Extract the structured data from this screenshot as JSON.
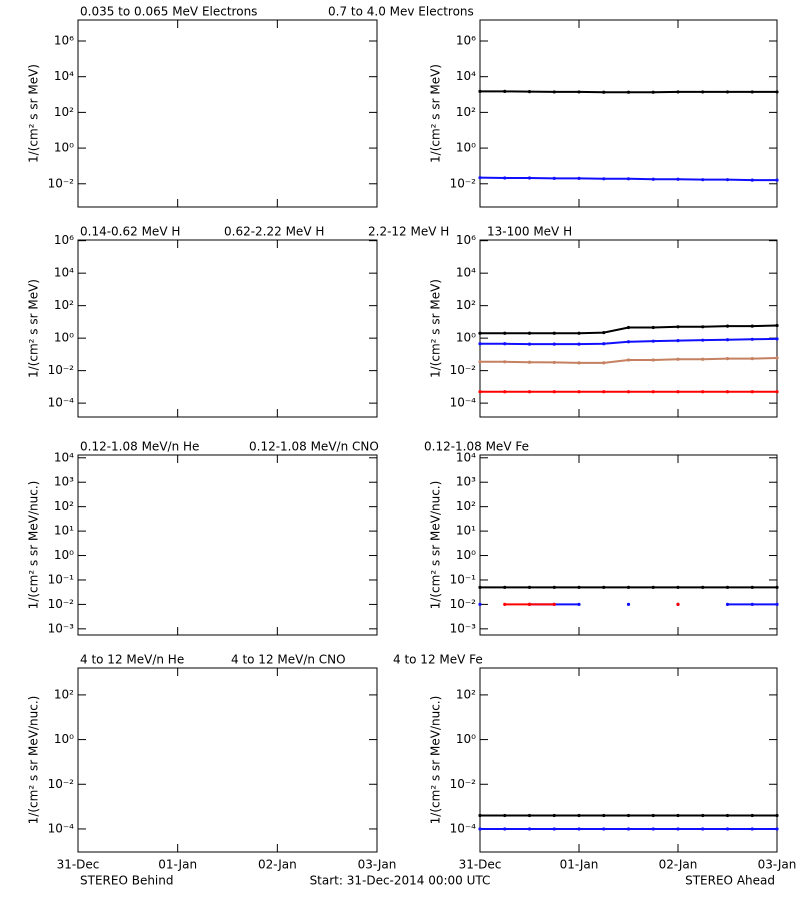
{
  "x_axis": {
    "xlim": [
      0,
      3
    ],
    "xticks": [
      {
        "value": 0,
        "label": "31-Dec"
      },
      {
        "value": 1,
        "label": "01-Jan"
      },
      {
        "value": 2,
        "label": "02-Jan"
      },
      {
        "value": 3,
        "label": "03-Jan"
      }
    ]
  },
  "footer": {
    "left": "STEREO Behind",
    "center": "Start: 31-Dec-2014 00:00 UTC",
    "right": "STEREO Ahead"
  },
  "chart_data": [
    {
      "type": "line",
      "ylabel": "1/(cm² s sr MeV)",
      "ylog": true,
      "ylim": [
        0.0005,
        15000000
      ],
      "yticks": [
        {
          "value": 1000000,
          "label": "10⁶"
        },
        {
          "value": 10000,
          "label": "10⁴"
        },
        {
          "value": 100,
          "label": "10²"
        },
        {
          "value": 1,
          "label": "10⁰"
        },
        {
          "value": 0.01,
          "label": "10⁻²"
        }
      ]
    },
    {
      "type": "line",
      "ylabel": "1/(cm² s sr MeV)",
      "ylog": true,
      "ylim": [
        0.0005,
        15000000
      ],
      "yticks": [
        {
          "value": 1000000,
          "label": "10⁶"
        },
        {
          "value": 10000,
          "label": "10⁴"
        },
        {
          "value": 100,
          "label": "10²"
        },
        {
          "value": 1,
          "label": "10⁰"
        },
        {
          "value": 0.01,
          "label": "10⁻²"
        }
      ],
      "x": [
        0,
        0.25,
        0.5,
        0.75,
        1,
        1.25,
        1.5,
        1.75,
        2,
        2.25,
        2.5,
        2.75,
        3
      ],
      "series": [
        {
          "name": "0.035 to 0.065 MeV Electrons",
          "color": "#000000",
          "values": [
            1500,
            1500,
            1450,
            1400,
            1400,
            1350,
            1350,
            1350,
            1400,
            1400,
            1400,
            1400,
            1400
          ]
        },
        {
          "name": "0.7 to 4.0 Mev Electrons",
          "color": "#1010ff",
          "values": [
            0.022,
            0.021,
            0.021,
            0.02,
            0.02,
            0.019,
            0.019,
            0.018,
            0.018,
            0.017,
            0.017,
            0.016,
            0.016
          ]
        }
      ]
    },
    {
      "type": "line",
      "ylabel": "1/(cm² s sr MeV)",
      "ylog": true,
      "ylim": [
        1.4e-05,
        1100000
      ],
      "yticks": [
        {
          "value": 1000000,
          "label": "10⁶"
        },
        {
          "value": 10000,
          "label": "10⁴"
        },
        {
          "value": 100,
          "label": "10²"
        },
        {
          "value": 1,
          "label": "10⁰"
        },
        {
          "value": 0.01,
          "label": "10⁻²"
        },
        {
          "value": 0.0001,
          "label": "10⁻⁴"
        }
      ]
    },
    {
      "type": "line",
      "ylabel": "1/(cm² s sr MeV)",
      "ylog": true,
      "ylim": [
        1.4e-05,
        1100000
      ],
      "yticks": [
        {
          "value": 1000000,
          "label": "10⁶"
        },
        {
          "value": 10000,
          "label": "10⁴"
        },
        {
          "value": 100,
          "label": "10²"
        },
        {
          "value": 1,
          "label": "10⁰"
        },
        {
          "value": 0.01,
          "label": "10⁻²"
        },
        {
          "value": 0.0001,
          "label": "10⁻⁴"
        }
      ],
      "x": [
        0,
        0.25,
        0.5,
        0.75,
        1,
        1.25,
        1.5,
        1.75,
        2,
        2.25,
        2.5,
        2.75,
        3
      ],
      "series": [
        {
          "name": "0.14-0.62 MeV H",
          "color": "#000000",
          "values": [
            2,
            2,
            2,
            2,
            2,
            2.2,
            4.5,
            4.5,
            5,
            5,
            5.5,
            5.5,
            6
          ]
        },
        {
          "name": "0.62-2.22 MeV H",
          "color": "#1010ff",
          "values": [
            0.45,
            0.45,
            0.43,
            0.43,
            0.43,
            0.45,
            0.6,
            0.65,
            0.7,
            0.75,
            0.8,
            0.85,
            0.9
          ]
        },
        {
          "name": "2.2-12 MeV H",
          "color": "#c48060",
          "values": [
            0.035,
            0.035,
            0.033,
            0.032,
            0.03,
            0.03,
            0.045,
            0.045,
            0.05,
            0.05,
            0.055,
            0.055,
            0.06
          ]
        },
        {
          "name": "13-100 MeV H",
          "color": "#ff0000",
          "values": [
            0.0005,
            0.0005,
            0.0005,
            0.0005,
            0.0005,
            0.0005,
            0.0005,
            0.0005,
            0.0005,
            0.0005,
            0.0005,
            0.0005,
            0.0005
          ]
        }
      ]
    },
    {
      "type": "line",
      "ylabel": "1/(cm² s sr MeV/nuc.)",
      "ylog": true,
      "ylim": [
        0.00056,
        13000
      ],
      "yticks": [
        {
          "value": 10000,
          "label": "10⁴"
        },
        {
          "value": 1000,
          "label": "10³"
        },
        {
          "value": 100,
          "label": "10²"
        },
        {
          "value": 10,
          "label": "10¹"
        },
        {
          "value": 1,
          "label": "10⁰"
        },
        {
          "value": 0.1,
          "label": "10⁻¹"
        },
        {
          "value": 0.01,
          "label": "10⁻²"
        },
        {
          "value": 0.001,
          "label": "10⁻³"
        }
      ]
    },
    {
      "type": "line",
      "ylabel": "1/(cm² s sr MeV/nuc.)",
      "ylog": true,
      "ylim": [
        0.00056,
        13000
      ],
      "yticks": [
        {
          "value": 10000,
          "label": "10⁴"
        },
        {
          "value": 1000,
          "label": "10³"
        },
        {
          "value": 100,
          "label": "10²"
        },
        {
          "value": 10,
          "label": "10¹"
        },
        {
          "value": 1,
          "label": "10⁰"
        },
        {
          "value": 0.1,
          "label": "10⁻¹"
        },
        {
          "value": 0.01,
          "label": "10⁻²"
        },
        {
          "value": 0.001,
          "label": "10⁻³"
        }
      ],
      "x": [
        0,
        0.25,
        0.5,
        0.75,
        1,
        1.25,
        1.5,
        1.75,
        2,
        2.25,
        2.5,
        2.75,
        3
      ],
      "series": [
        {
          "name": "0.12-1.08 MeV/n He",
          "color": "#000000",
          "values": [
            0.05,
            0.05,
            0.05,
            0.05,
            0.05,
            0.05,
            0.05,
            0.05,
            0.05,
            0.05,
            0.05,
            0.05,
            0.05
          ]
        },
        {
          "name": "0.12-1.08 MeV/n CNO",
          "color": "#1010ff",
          "values": [
            0.01,
            null,
            0.01,
            0.01,
            0.01,
            null,
            0.01,
            null,
            0.01,
            null,
            0.01,
            0.01,
            0.01
          ]
        },
        {
          "name": "0.12-1.08 MeV Fe",
          "color": "#ff0000",
          "values": [
            null,
            0.01,
            0.01,
            0.01,
            null,
            null,
            null,
            null,
            0.01,
            null,
            null,
            null,
            null
          ]
        }
      ]
    },
    {
      "type": "line",
      "ylabel": "1/(cm² s sr MeV/nuc.)",
      "ylog": true,
      "ylim": [
        9.3e-06,
        1600
      ],
      "yticks": [
        {
          "value": 100,
          "label": "10²"
        },
        {
          "value": 1,
          "label": "10⁰"
        },
        {
          "value": 0.01,
          "label": "10⁻²"
        },
        {
          "value": 0.0001,
          "label": "10⁻⁴"
        }
      ]
    },
    {
      "type": "line",
      "ylabel": "1/(cm² s sr MeV/nuc.)",
      "ylog": true,
      "ylim": [
        9.3e-06,
        1600
      ],
      "yticks": [
        {
          "value": 100,
          "label": "10²"
        },
        {
          "value": 1,
          "label": "10⁰"
        },
        {
          "value": 0.01,
          "label": "10⁻²"
        },
        {
          "value": 0.0001,
          "label": "10⁻⁴"
        }
      ],
      "x": [
        0,
        0.25,
        0.5,
        0.75,
        1,
        1.25,
        1.5,
        1.75,
        2,
        2.25,
        2.5,
        2.75,
        3
      ],
      "series": [
        {
          "name": "4 to 12 MeV/n He",
          "color": "#000000",
          "values": [
            0.0004,
            0.0004,
            0.0004,
            0.0004,
            0.0004,
            0.0004,
            0.0004,
            0.0004,
            0.0004,
            0.0004,
            0.0004,
            0.0004,
            0.0004
          ]
        },
        {
          "name": "4 to 12 MeV/n CNO",
          "color": "#1010ff",
          "values": [
            0.0001,
            0.0001,
            0.0001,
            0.0001,
            0.0001,
            0.0001,
            0.0001,
            0.0001,
            0.0001,
            0.0001,
            0.0001,
            0.0001,
            0.0001
          ]
        },
        {
          "name": "4 to 12 MeV Fe",
          "color": "#ff0000",
          "values": [
            null,
            null,
            null,
            null,
            null,
            null,
            null,
            null,
            null,
            null,
            null,
            null,
            null
          ]
        }
      ]
    }
  ]
}
